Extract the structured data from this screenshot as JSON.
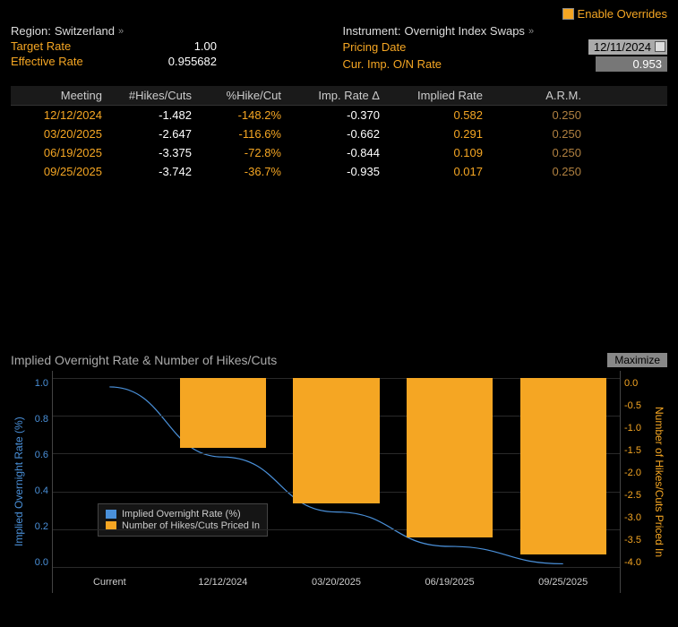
{
  "colors": {
    "accent": "#f5a623",
    "line": "#4a90d9",
    "bg": "#000000",
    "text": "#cccccc",
    "grid": "#2a2a2a"
  },
  "top": {
    "enable_overrides_label": "Enable Overrides"
  },
  "header": {
    "left": {
      "region_label": "Region:",
      "region_value": "Switzerland",
      "target_rate_label": "Target Rate",
      "target_rate_value": "1.00",
      "effective_rate_label": "Effective Rate",
      "effective_rate_value": "0.955682"
    },
    "right": {
      "instrument_label": "Instrument:",
      "instrument_value": "Overnight Index Swaps",
      "pricing_date_label": "Pricing Date",
      "pricing_date_value": "12/11/2024",
      "cur_imp_label": "Cur. Imp. O/N Rate",
      "cur_imp_value": "0.953"
    }
  },
  "table": {
    "columns": [
      "Meeting",
      "#Hikes/Cuts",
      "%Hike/Cut",
      "Imp. Rate Δ",
      "Implied Rate",
      "A.R.M."
    ],
    "rows": [
      {
        "meeting": "12/12/2024",
        "hikes": "-1.482",
        "pct": "-148.2%",
        "delta": "-0.370",
        "implied": "0.582",
        "arm": "0.250"
      },
      {
        "meeting": "03/20/2025",
        "hikes": "-2.647",
        "pct": "-116.6%",
        "delta": "-0.662",
        "implied": "0.291",
        "arm": "0.250"
      },
      {
        "meeting": "06/19/2025",
        "hikes": "-3.375",
        "pct": "-72.8%",
        "delta": "-0.844",
        "implied": "0.109",
        "arm": "0.250"
      },
      {
        "meeting": "09/25/2025",
        "hikes": "-3.742",
        "pct": "-36.7%",
        "delta": "-0.935",
        "implied": "0.017",
        "arm": "0.250"
      }
    ]
  },
  "chart": {
    "title": "Implied Overnight Rate & Number of Hikes/Cuts",
    "maximize_label": "Maximize",
    "y_left": {
      "label": "Implied Overnight Rate (%)",
      "min": 0.0,
      "max": 1.0,
      "ticks": [
        "1.0",
        "0.8",
        "0.6",
        "0.4",
        "0.2",
        "0.0"
      ]
    },
    "y_right": {
      "label": "Number of Hikes/Cuts Priced In",
      "min": -4.0,
      "max": 0.0,
      "ticks": [
        "0.0",
        "-0.5",
        "-1.0",
        "-1.5",
        "-2.0",
        "-2.5",
        "-3.0",
        "-3.5",
        "-4.0"
      ]
    },
    "x_labels": [
      "Current",
      "12/12/2024",
      "03/20/2025",
      "06/19/2025",
      "09/25/2025"
    ],
    "line_values": [
      0.953,
      0.582,
      0.291,
      0.109,
      0.017
    ],
    "bar_values": [
      0,
      -1.482,
      -2.647,
      -3.375,
      -3.742
    ],
    "bar_color": "#f5a623",
    "line_color": "#4a90d9",
    "legend": {
      "line_label": "Implied Overnight Rate (%)",
      "bar_label": "Number of Hikes/Cuts Priced In"
    }
  }
}
